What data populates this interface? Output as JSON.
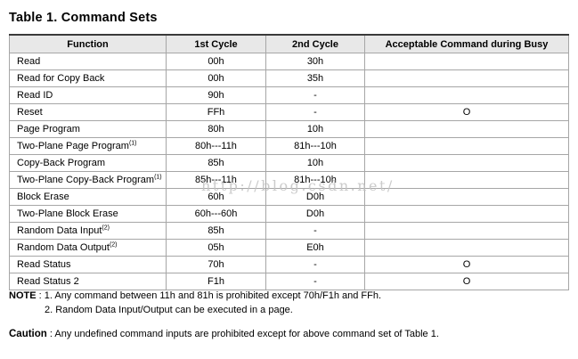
{
  "title": "Table 1. Command Sets",
  "table": {
    "headers": [
      "Function",
      "1st Cycle",
      "2nd Cycle",
      "Acceptable Command during Busy"
    ],
    "rows": [
      {
        "function": "Read",
        "sup": "",
        "cycle1": "00h",
        "cycle2": "30h",
        "busy": ""
      },
      {
        "function": "Read for Copy Back",
        "sup": "",
        "cycle1": "00h",
        "cycle2": "35h",
        "busy": ""
      },
      {
        "function": "Read ID",
        "sup": "",
        "cycle1": "90h",
        "cycle2": "-",
        "busy": ""
      },
      {
        "function": "Reset",
        "sup": "",
        "cycle1": "FFh",
        "cycle2": "-",
        "busy": "O"
      },
      {
        "function": "Page Program",
        "sup": "",
        "cycle1": "80h",
        "cycle2": "10h",
        "busy": ""
      },
      {
        "function": "Two-Plane Page Program",
        "sup": "(1)",
        "cycle1": "80h---11h",
        "cycle2": "81h---10h",
        "busy": ""
      },
      {
        "function": "Copy-Back Program",
        "sup": "",
        "cycle1": "85h",
        "cycle2": "10h",
        "busy": ""
      },
      {
        "function": "Two-Plane Copy-Back Program",
        "sup": "(1)",
        "cycle1": "85h---11h",
        "cycle2": "81h---10h",
        "busy": ""
      },
      {
        "function": "Block Erase",
        "sup": "",
        "cycle1": "60h",
        "cycle2": "D0h",
        "busy": ""
      },
      {
        "function": "Two-Plane Block Erase",
        "sup": "",
        "cycle1": "60h---60h",
        "cycle2": "D0h",
        "busy": ""
      },
      {
        "function": "Random Data Input",
        "sup": "(2)",
        "cycle1": "85h",
        "cycle2": "-",
        "busy": ""
      },
      {
        "function": "Random Data Output",
        "sup": "(2)",
        "cycle1": "05h",
        "cycle2": "E0h",
        "busy": ""
      },
      {
        "function": "Read Status",
        "sup": "",
        "cycle1": "70h",
        "cycle2": "-",
        "busy": "O"
      },
      {
        "function": "Read Status 2",
        "sup": "",
        "cycle1": "F1h",
        "cycle2": "-",
        "busy": "O"
      }
    ]
  },
  "notes": {
    "label": "NOTE",
    "line1": " : 1. Any command between 11h and 81h is prohibited except 70h/F1h and FFh.",
    "line2": "2. Random Data Input/Output can be executed in a page."
  },
  "caution": {
    "label": "Caution",
    "text": " : Any undefined command inputs are prohibited except for above command set of Table 1."
  },
  "watermark": "http://blog.csdn.net/",
  "colors": {
    "header_bg": "#e8e8e8",
    "border": "#a6a6a6",
    "top_border": "#3a3a3a",
    "watermark": "#c3c3c3"
  }
}
